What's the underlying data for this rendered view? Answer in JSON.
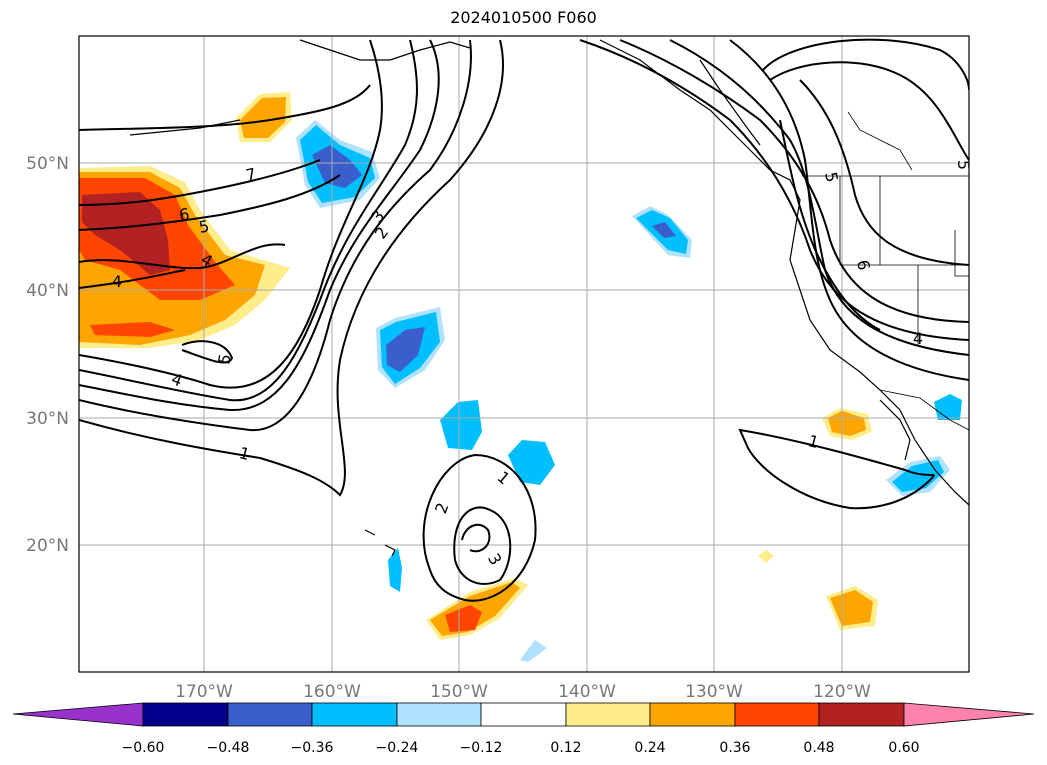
{
  "title": "2024010500 F060",
  "map": {
    "lat_labels": [
      "50°N",
      "40°N",
      "30°N",
      "20°N"
    ],
    "lon_labels": [
      "170°W",
      "160°W",
      "150°W",
      "140°W",
      "130°W",
      "120°W"
    ],
    "contour_labels": [
      "7",
      "6",
      "5",
      "4",
      "4",
      "5",
      "4",
      "3",
      "2",
      "1",
      "1",
      "2",
      "3",
      "1",
      "5",
      "6",
      "4",
      "5"
    ]
  },
  "colorbar": {
    "ticks": [
      "−0.60",
      "−0.48",
      "−0.36",
      "−0.24",
      "−0.12",
      "0.12",
      "0.24",
      "0.36",
      "0.48",
      "0.60"
    ],
    "colors": {
      "under": "#9932CC",
      "bins": [
        "#00008B",
        "#3A5FCD",
        "#00BFFF",
        "#B0E2FF",
        "#FFFFFF",
        "#FFEC8B",
        "#FFA500",
        "#FF4500",
        "#B22222"
      ],
      "over": "#FF82AB"
    }
  }
}
